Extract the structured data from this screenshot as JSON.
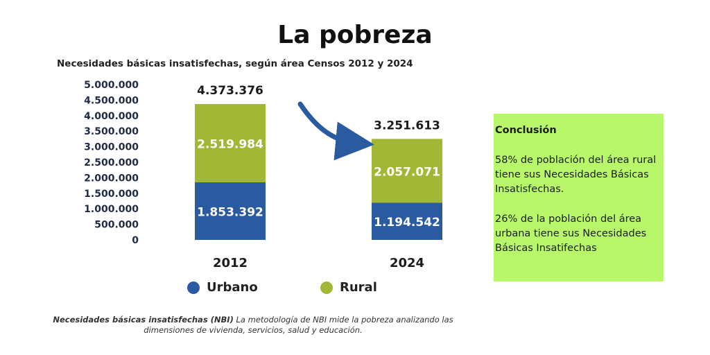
{
  "slide": {
    "title": "La pobreza"
  },
  "chart_title": "Necesidades básicas insatisfechas, según área Censos 2012 y 2024",
  "chart_data": {
    "type": "bar",
    "stacked": true,
    "categories": [
      "2012",
      "2024"
    ],
    "series": [
      {
        "name": "Urbano",
        "values": [
          1853392,
          1194542
        ],
        "labels": [
          "1.853.392",
          "1.194.542"
        ],
        "color": "#2a5aa0"
      },
      {
        "name": "Rural",
        "values": [
          2519984,
          2057071
        ],
        "labels": [
          "2.519.984",
          "2.057.071"
        ],
        "color": "#a1b735"
      }
    ],
    "totals": [
      4373376,
      3251613
    ],
    "total_labels": [
      "4.373.376",
      "3.251.613"
    ],
    "ylim": [
      0,
      5000000
    ],
    "yticks": [
      "0",
      "500.000",
      "1.000.000",
      "1.500.000",
      "2.000.000",
      "2.500.000",
      "3.000.000",
      "3.500.000",
      "4.000.000",
      "4.500.000",
      "5.000.000"
    ],
    "title": "Necesidades básicas insatisfechas, según área Censos 2012 y 2024",
    "xlabel": "",
    "ylabel": "",
    "grid": false,
    "legend": "bottom",
    "arrow_color": "#2a5aa0"
  },
  "note": {
    "bold": "Necesidades básicas insatisfechas (NBI)",
    "text": " La metodología de NBI mide la pobreza analizando las dimensiones de vivienda, servicios, salud y educación."
  },
  "conclusion": {
    "heading": "Conclusión",
    "paragraphs": [
      "58% de población del área rural tiene sus Necesidades Básicas Insatisfechas.",
      "26% de la población del área urbana tiene sus Necesidades Básicas Insatifechas"
    ],
    "background": "#b8f76a"
  }
}
